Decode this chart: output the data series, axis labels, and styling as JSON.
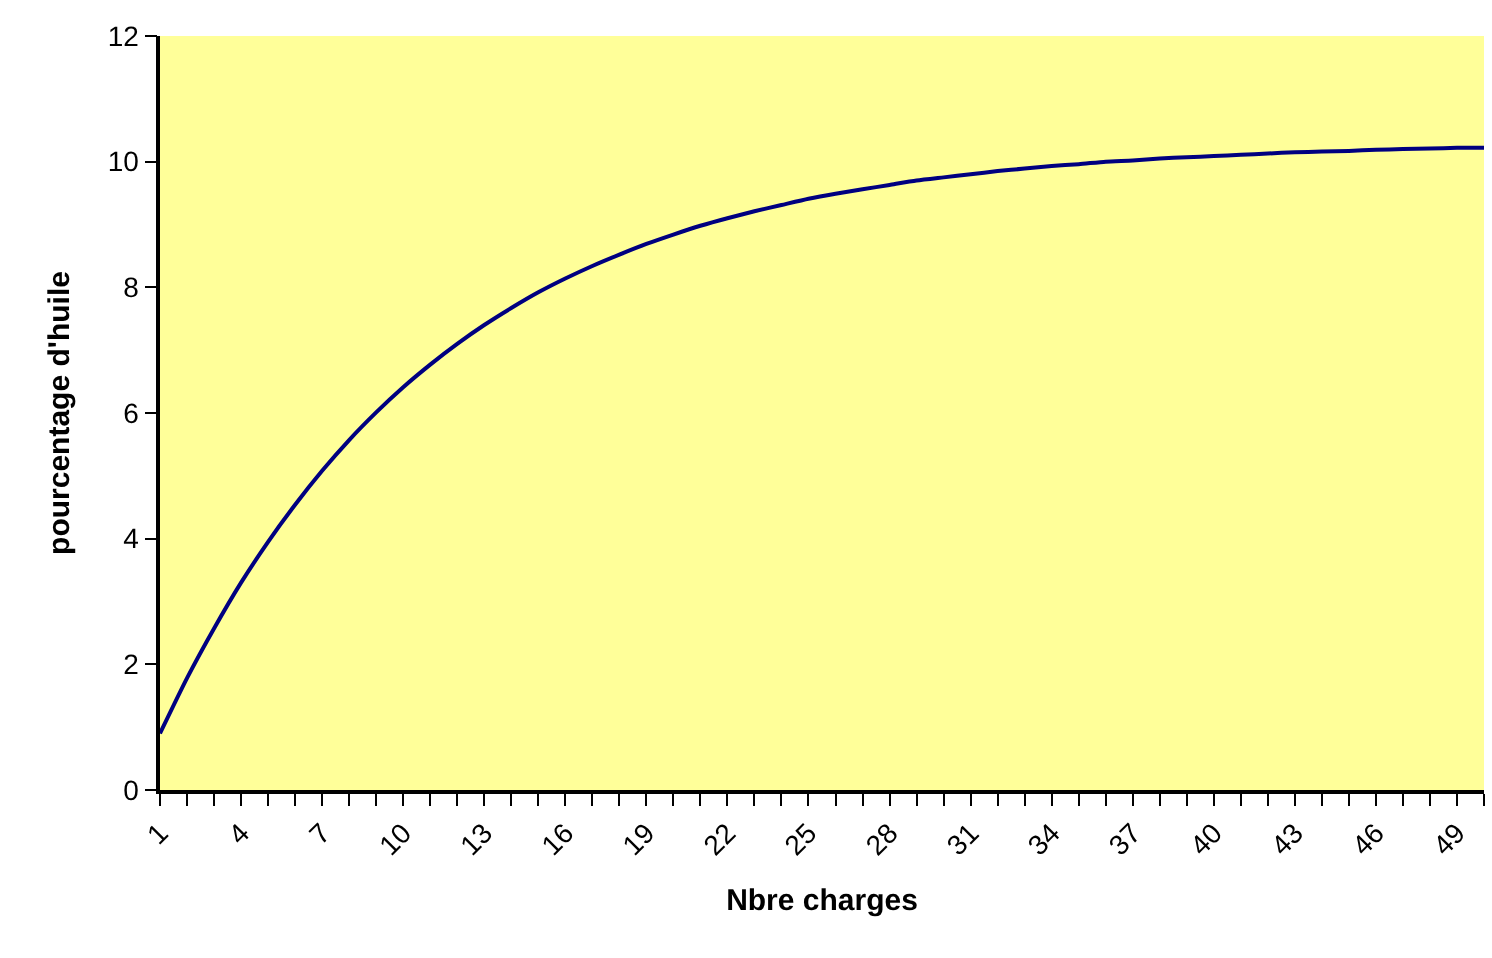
{
  "chart_data": {
    "type": "line",
    "xlabel": "Nbre charges",
    "ylabel": "pourcentage d'huile",
    "x": [
      1,
      2,
      3,
      4,
      5,
      6,
      7,
      8,
      9,
      10,
      11,
      12,
      13,
      14,
      15,
      16,
      17,
      18,
      19,
      20,
      21,
      22,
      23,
      24,
      25,
      26,
      27,
      28,
      29,
      30,
      31,
      32,
      33,
      34,
      35,
      36,
      37,
      38,
      39,
      40,
      41,
      42,
      43,
      44,
      45,
      46,
      47,
      48,
      49,
      50
    ],
    "series": [
      {
        "color": "#000080",
        "values": [
          0.9,
          1.78,
          2.57,
          3.3,
          3.95,
          4.54,
          5.08,
          5.57,
          6.01,
          6.41,
          6.77,
          7.1,
          7.4,
          7.67,
          7.92,
          8.14,
          8.34,
          8.52,
          8.69,
          8.84,
          8.98,
          9.1,
          9.21,
          9.31,
          9.41,
          9.49,
          9.56,
          9.63,
          9.7,
          9.75,
          9.8,
          9.85,
          9.89,
          9.93,
          9.96,
          10.0,
          10.02,
          10.05,
          10.07,
          10.09,
          10.11,
          10.13,
          10.15,
          10.16,
          10.17,
          10.19,
          10.2,
          10.21,
          10.22,
          10.22
        ]
      }
    ],
    "xlim": [
      1,
      50
    ],
    "xticks": [
      1,
      {
        "value": 2,
        "label": null
      },
      {
        "value": 3,
        "label": null
      },
      4,
      {
        "value": 5,
        "label": null
      },
      {
        "value": 6,
        "label": null
      },
      7,
      {
        "value": 8,
        "label": null
      },
      {
        "value": 9,
        "label": null
      },
      10,
      {
        "value": 11,
        "label": null
      },
      {
        "value": 12,
        "label": null
      },
      13,
      {
        "value": 14,
        "label": null
      },
      {
        "value": 15,
        "label": null
      },
      16,
      {
        "value": 17,
        "label": null
      },
      {
        "value": 18,
        "label": null
      },
      19,
      {
        "value": 20,
        "label": null
      },
      {
        "value": 21,
        "label": null
      },
      22,
      {
        "value": 23,
        "label": null
      },
      {
        "value": 24,
        "label": null
      },
      25,
      {
        "value": 26,
        "label": null
      },
      {
        "value": 27,
        "label": null
      },
      28,
      {
        "value": 29,
        "label": null
      },
      {
        "value": 30,
        "label": null
      },
      31,
      {
        "value": 32,
        "label": null
      },
      {
        "value": 33,
        "label": null
      },
      34,
      {
        "value": 35,
        "label": null
      },
      {
        "value": 36,
        "label": null
      },
      37,
      {
        "value": 38,
        "label": null
      },
      {
        "value": 39,
        "label": null
      },
      40,
      {
        "value": 41,
        "label": null
      },
      {
        "value": 42,
        "label": null
      },
      43,
      {
        "value": 44,
        "label": null
      },
      {
        "value": 45,
        "label": null
      },
      46,
      {
        "value": 47,
        "label": null
      },
      {
        "value": 48,
        "label": null
      },
      49,
      {
        "value": 50,
        "label": null
      }
    ],
    "ylim": [
      0,
      12
    ],
    "yticks": [
      0,
      2,
      4,
      6,
      8,
      10,
      12
    ],
    "grid": false,
    "marker": "none",
    "line_style": "solid"
  }
}
